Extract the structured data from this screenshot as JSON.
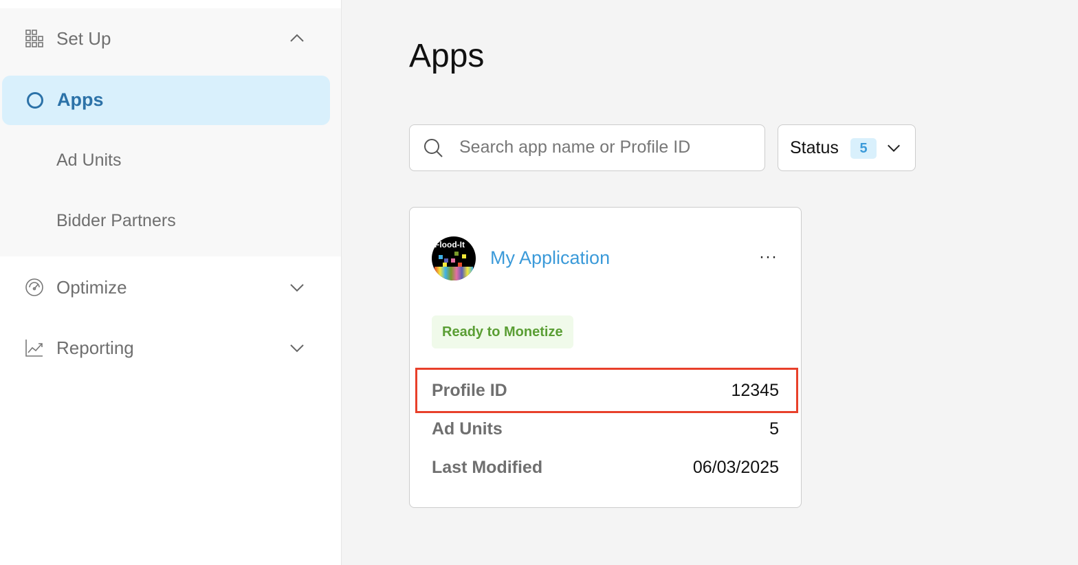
{
  "sidebar": {
    "setup": {
      "label": "Set Up",
      "icon": "grid-blocks-icon",
      "expanded": true
    },
    "items": [
      {
        "label": "Apps",
        "active": true
      },
      {
        "label": "Ad Units"
      },
      {
        "label": "Bidder Partners"
      }
    ],
    "optimize": {
      "label": "Optimize",
      "icon": "gauge-icon"
    },
    "reporting": {
      "label": "Reporting",
      "icon": "line-chart-icon"
    }
  },
  "main": {
    "title": "Apps",
    "search": {
      "placeholder": "Search app name or Profile ID",
      "value": ""
    },
    "status_filter": {
      "label": "Status",
      "count": "5"
    },
    "card": {
      "avatar_text": "Flood-It",
      "app_name": "My Application",
      "more": "···",
      "status": "Ready to Monetize",
      "fields": [
        {
          "label": "Profile ID",
          "value": "12345"
        },
        {
          "label": "Ad Units",
          "value": "5"
        },
        {
          "label": "Last Modified",
          "value": "06/03/2025"
        }
      ]
    }
  },
  "colors": {
    "accent": "#2c72a8",
    "link": "#3b9ad9",
    "ready": "#5a9e34",
    "highlight": "#e8402a"
  }
}
